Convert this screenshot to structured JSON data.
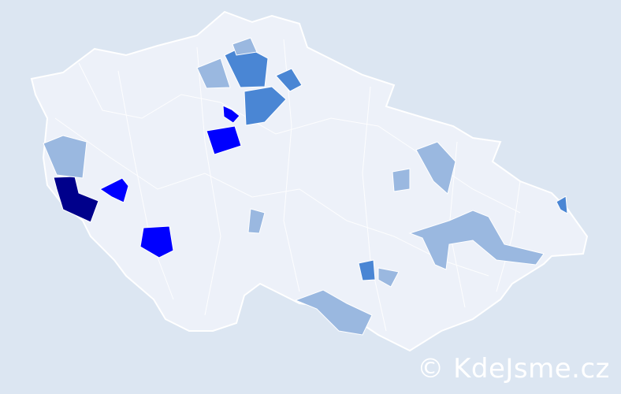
{
  "map": {
    "background_color": "#dce6f2",
    "base_color": "#edf1f9",
    "border_color": "#ffffff",
    "legend_colors": {
      "highest": "#00008b",
      "high": "#0000ff",
      "medium": "#4a86d4",
      "low": "#9ab8e0"
    },
    "highlighted_regions": [
      {
        "level": "highest"
      },
      {
        "level": "high"
      },
      {
        "level": "high"
      },
      {
        "level": "high"
      },
      {
        "level": "high"
      },
      {
        "level": "medium"
      },
      {
        "level": "medium"
      },
      {
        "level": "medium"
      },
      {
        "level": "medium"
      },
      {
        "level": "medium"
      },
      {
        "level": "low"
      },
      {
        "level": "low"
      },
      {
        "level": "low"
      },
      {
        "level": "low"
      },
      {
        "level": "low"
      },
      {
        "level": "low"
      },
      {
        "level": "low"
      },
      {
        "level": "low"
      },
      {
        "level": "low"
      }
    ]
  },
  "watermark": {
    "text": "© KdeJsme.cz"
  }
}
